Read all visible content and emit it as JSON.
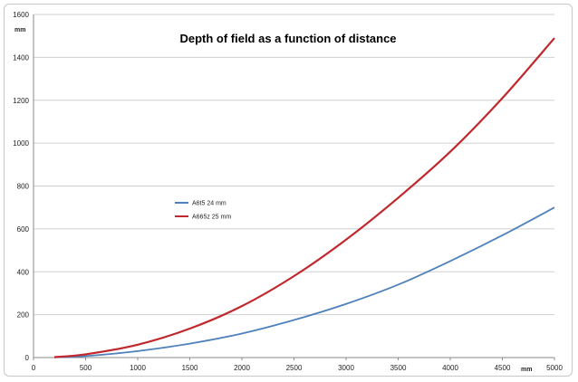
{
  "chart_data": {
    "type": "line",
    "title": "Depth of field as a function of distance",
    "xlabel": "mm",
    "ylabel": "mm",
    "xlim": [
      0,
      5000
    ],
    "ylim": [
      0,
      1600
    ],
    "x_ticks": [
      "0",
      "500",
      "1000",
      "1500",
      "2000",
      "2500",
      "3000",
      "3500",
      "4000",
      "4500",
      "5000"
    ],
    "y_ticks": [
      "0",
      "200",
      "400",
      "600",
      "800",
      "1000",
      "1200",
      "1400",
      "1600"
    ],
    "grid": "horizontal",
    "legend_position": "center-left",
    "series": [
      {
        "name": "A6t5 24 mm",
        "color": "#4f81bd",
        "x": [
          200,
          500,
          1000,
          1500,
          2000,
          2500,
          3000,
          3500,
          4000,
          4500,
          5000
        ],
        "y": [
          1,
          7,
          30,
          65,
          112,
          175,
          250,
          340,
          450,
          570,
          700
        ]
      },
      {
        "name": "A665z 25 mm",
        "color": "#c0282d",
        "x": [
          200,
          500,
          1000,
          1500,
          2000,
          2500,
          3000,
          3500,
          4000,
          4500,
          5000
        ],
        "y": [
          2,
          15,
          60,
          135,
          240,
          380,
          550,
          745,
          960,
          1210,
          1490
        ]
      }
    ]
  }
}
